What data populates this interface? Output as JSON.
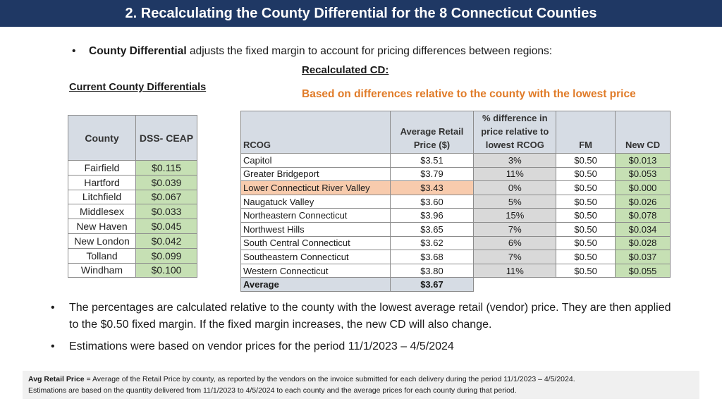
{
  "title": "2. Recalculating the County Differential for the 8 Connecticut Counties",
  "intro": {
    "bullet": "•",
    "bold": "County Differential",
    "text": " adjusts the fixed margin to account for pricing differences between regions:"
  },
  "recalc_label": "Recalculated CD:",
  "recalc_sub": "Based on differences relative to the county with the lowest price",
  "current_label": "Current County Differentials",
  "county_table": {
    "headers": [
      "County",
      "DSS- CEAP"
    ],
    "rows": [
      {
        "county": "Fairfield",
        "value": "$0.115"
      },
      {
        "county": "Hartford",
        "value": "$0.039"
      },
      {
        "county": "Litchfield",
        "value": "$0.067"
      },
      {
        "county": "Middlesex",
        "value": "$0.033"
      },
      {
        "county": "New Haven",
        "value": "$0.045"
      },
      {
        "county": "New London",
        "value": "$0.042"
      },
      {
        "county": "Tolland",
        "value": "$0.099"
      },
      {
        "county": "Windham",
        "value": "$0.100"
      }
    ]
  },
  "rcog_table": {
    "headers": {
      "rcog": "RCOG",
      "price": [
        "Average Retail",
        "Price ($)"
      ],
      "pct": [
        "% difference in",
        "price relative to",
        "lowest RCOG"
      ],
      "fm": "FM",
      "new": "New CD"
    },
    "rows": [
      {
        "name": "Capitol",
        "price": "$3.51",
        "pct": "3%",
        "fm": "$0.50",
        "new": "$0.013"
      },
      {
        "name": "Greater Bridgeport",
        "price": "$3.79",
        "pct": "11%",
        "fm": "$0.50",
        "new": "$0.053"
      },
      {
        "name": "Lower Connecticut River Valley",
        "price": "$3.43",
        "pct": "0%",
        "fm": "$0.50",
        "new": "$0.000"
      },
      {
        "name": "Naugatuck Valley",
        "price": "$3.60",
        "pct": "5%",
        "fm": "$0.50",
        "new": "$0.026"
      },
      {
        "name": "Northeastern Connecticut",
        "price": "$3.96",
        "pct": "15%",
        "fm": "$0.50",
        "new": "$0.078"
      },
      {
        "name": "Northwest Hills",
        "price": "$3.65",
        "pct": "7%",
        "fm": "$0.50",
        "new": "$0.034"
      },
      {
        "name": "South Central Connecticut",
        "price": "$3.62",
        "pct": "6%",
        "fm": "$0.50",
        "new": "$0.028"
      },
      {
        "name": "Southeastern Connecticut",
        "price": "$3.68",
        "pct": "7%",
        "fm": "$0.50",
        "new": "$0.037"
      },
      {
        "name": "Western Connecticut",
        "price": "$3.80",
        "pct": "11%",
        "fm": "$0.50",
        "new": "$0.055"
      }
    ],
    "average": {
      "name": "Average",
      "price": "$3.67"
    }
  },
  "bullets": [
    "The percentages are calculated relative to the county with the lowest average retail (vendor) price. They are then applied to the $0.50 fixed margin. If the fixed margin increases, the new CD will also change.",
    "Estimations were based on vendor prices for the period 11/1/2023 – 4/5/2024"
  ],
  "bullet_symbol": "•",
  "footnote": {
    "bold": "Avg Retail Price",
    "line1": " = Average of the Retail Price by county, as reported by the vendors on the invoice submitted for each delivery during the period 11/1/2023 – 4/5/2024.",
    "line2": "Estimations are based on the quantity delivered from 11/1/2023 to 4/5/2024 to each county and the average prices for each county during that period."
  },
  "colors": {
    "title_bar": "#1f3864",
    "header_fill": "#d6dce4",
    "green_fill": "#c6e0b4",
    "gray_fill": "#d9d9d9",
    "highlight_fill": "#f8cbad",
    "orange_text": "#e07b28"
  }
}
